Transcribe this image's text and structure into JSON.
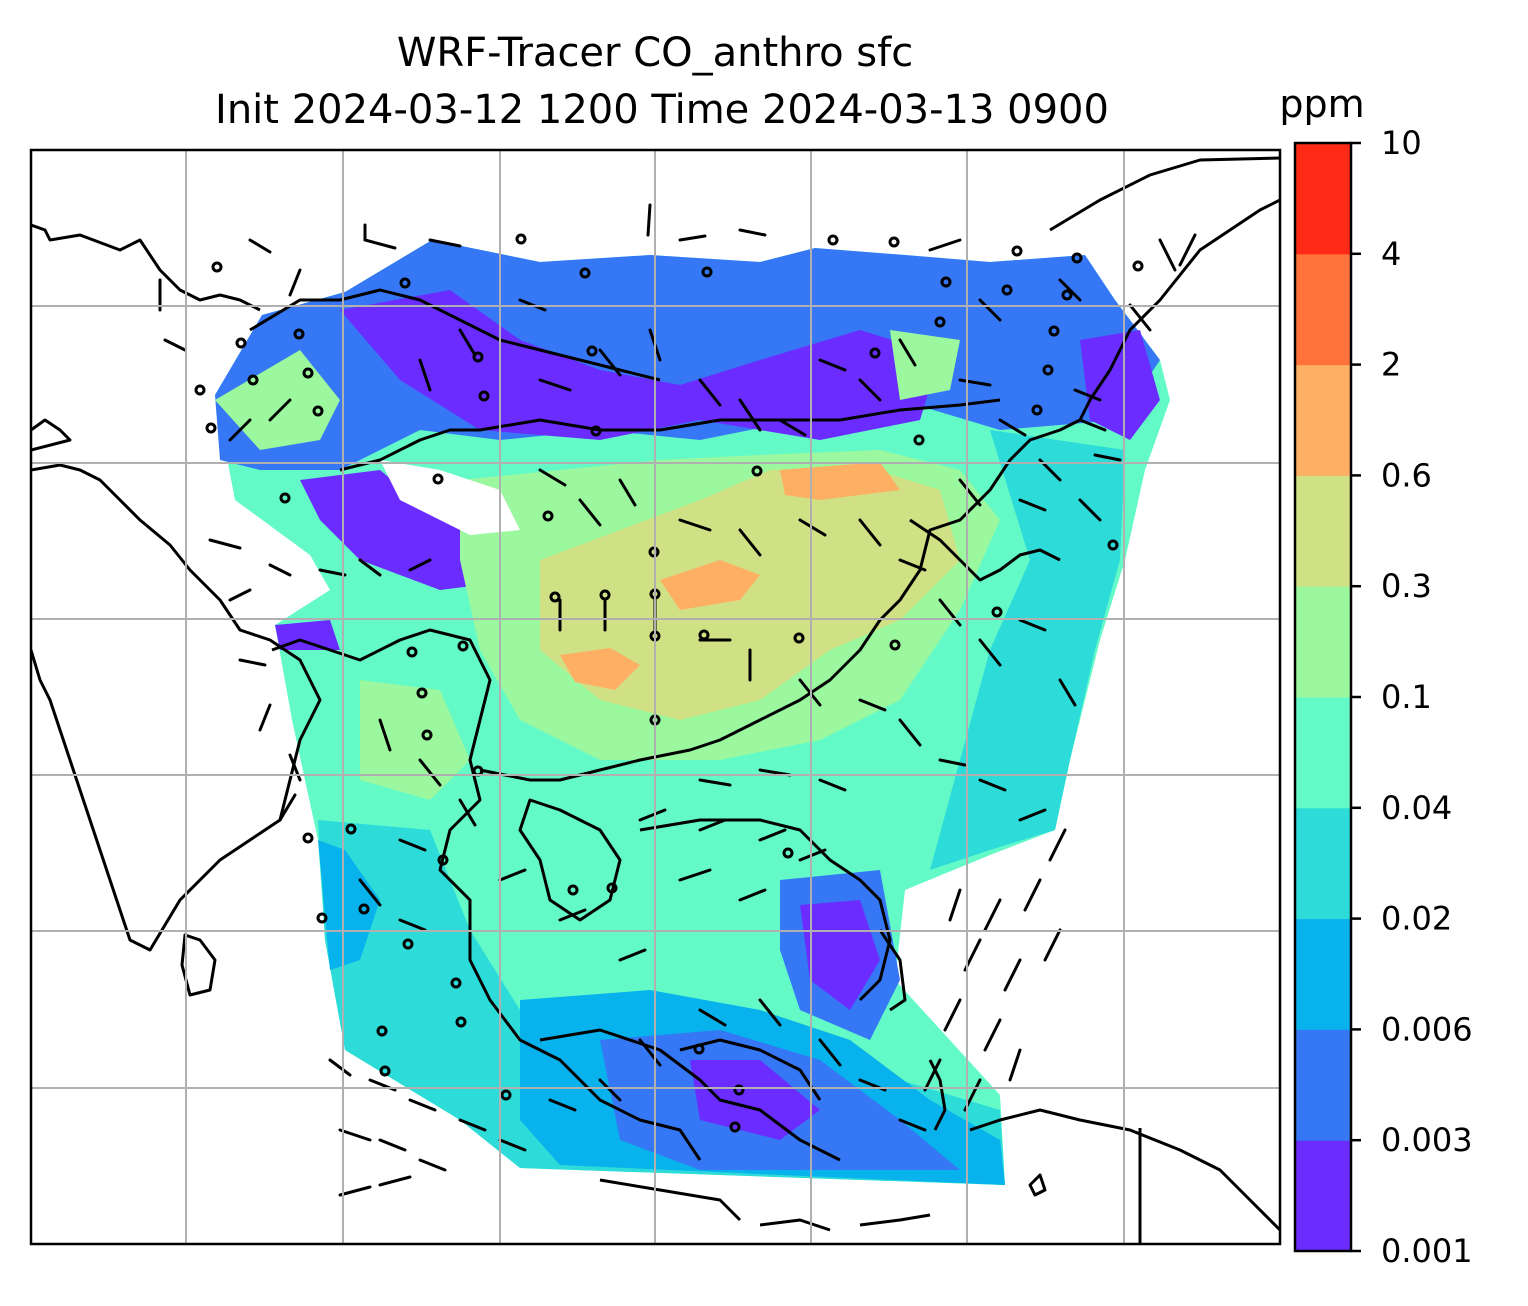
{
  "figure": {
    "title_line1": "WRF-Tracer CO_anthro sfc",
    "title_line2": "Init 2024-03-12 1200 Time 2024-03-13 0900"
  },
  "map": {
    "field": "CO_anthro surface concentration",
    "gridlines": true,
    "overlays": [
      "coastlines",
      "country borders",
      "wind barbs"
    ]
  },
  "colorbar": {
    "unit": "ppm",
    "tick_labels": [
      "0.001",
      "0.003",
      "0.006",
      "0.02",
      "0.04",
      "0.1",
      "0.3",
      "0.6",
      "2",
      "4",
      "10"
    ],
    "colors": [
      "#6a2cff",
      "#3677f5",
      "#08b2ec",
      "#2ddbd9",
      "#63fac7",
      "#9bf89f",
      "#d0e185",
      "#fdb064",
      "#ff733b",
      "#ff2a16"
    ]
  }
}
